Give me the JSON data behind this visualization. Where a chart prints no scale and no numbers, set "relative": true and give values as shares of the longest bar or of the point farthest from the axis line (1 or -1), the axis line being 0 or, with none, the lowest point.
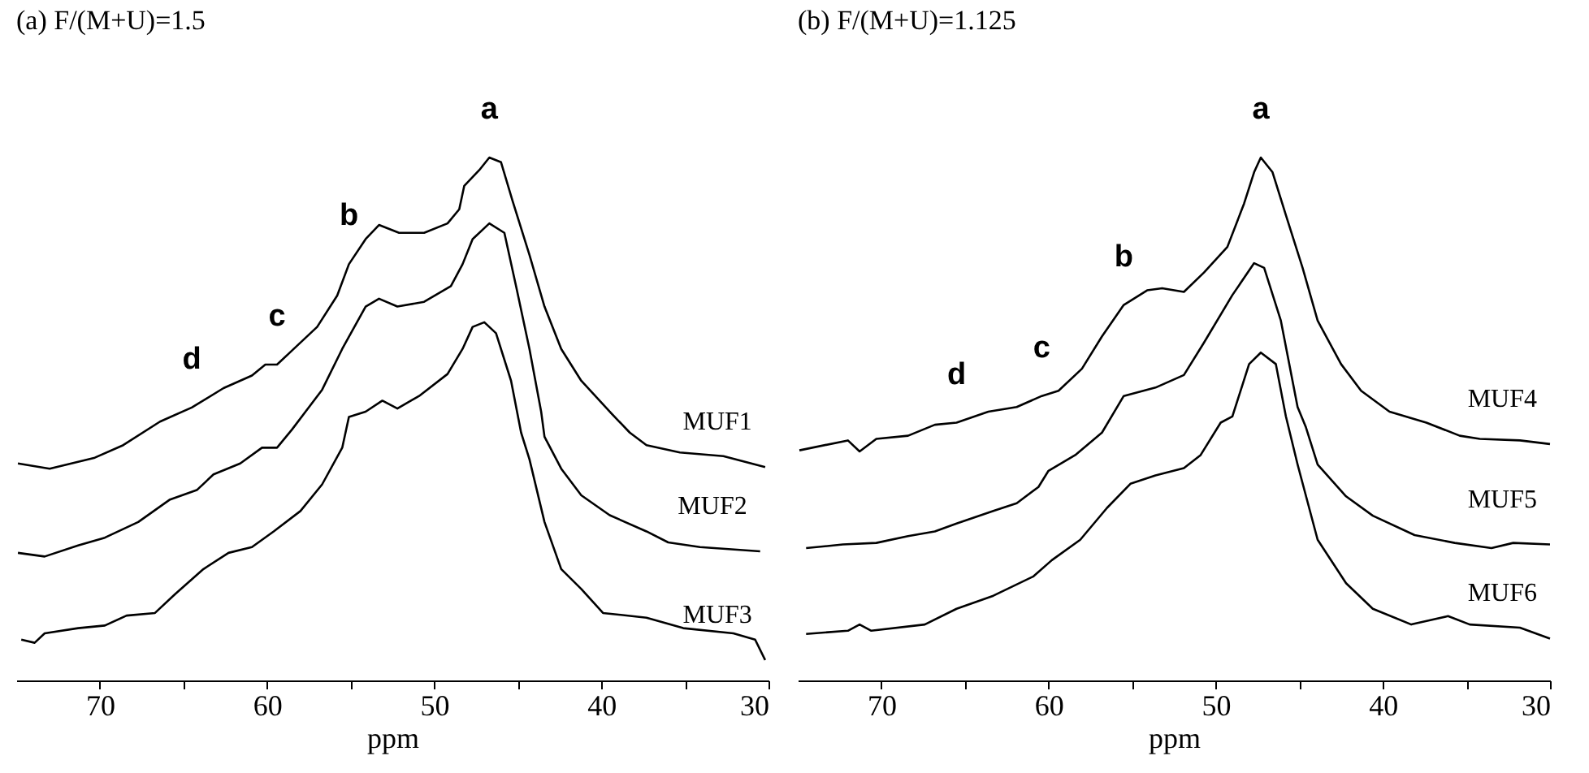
{
  "chart_data": [
    {
      "type": "line",
      "title": "(a) F/(M+U)=1.5",
      "xlabel": "ppm",
      "relative": true,
      "xlim": [
        75,
        30
      ],
      "xticks": [
        70,
        {
          "value": 65,
          "label": null
        },
        60,
        {
          "value": 55,
          "label": null
        },
        50,
        {
          "value": 45,
          "label": null
        },
        40,
        {
          "value": 35,
          "label": null
        },
        30
      ],
      "annotations": [
        {
          "text": "a",
          "x": 46.7,
          "y": 1.0
        },
        {
          "text": "b",
          "x": 55.1,
          "y": 0.796
        },
        {
          "text": "c",
          "x": 59.4,
          "y": 0.604
        },
        {
          "text": "d",
          "x": 64.5,
          "y": 0.522
        }
      ],
      "series": [
        {
          "name": "MUF1",
          "color": "#000000",
          "x": [
            74.9,
            73.0,
            70.3,
            68.6,
            66.4,
            64.5,
            62.6,
            60.9,
            60.1,
            59.4,
            58.5,
            57.0,
            55.8,
            55.1,
            54.1,
            53.3,
            52.1,
            50.6,
            49.2,
            48.5,
            48.2,
            47.3,
            46.7,
            46.0,
            45.3,
            44.3,
            43.4,
            42.4,
            41.2,
            39.5,
            38.3,
            37.3,
            35.3,
            32.7,
            30.2
          ],
          "values": [
            0.415,
            0.405,
            0.426,
            0.45,
            0.495,
            0.522,
            0.559,
            0.583,
            0.604,
            0.604,
            0.631,
            0.676,
            0.736,
            0.796,
            0.844,
            0.871,
            0.856,
            0.856,
            0.874,
            0.901,
            0.946,
            0.976,
            1.0,
            0.991,
            0.916,
            0.814,
            0.715,
            0.634,
            0.573,
            0.514,
            0.474,
            0.45,
            0.436,
            0.429,
            0.408
          ]
        },
        {
          "name": "MUF2",
          "color": "#000000",
          "x": [
            74.9,
            73.3,
            71.3,
            69.7,
            67.7,
            65.8,
            64.2,
            63.2,
            61.6,
            60.3,
            59.4,
            58.5,
            56.7,
            55.5,
            54.1,
            53.3,
            52.2,
            50.6,
            49.0,
            48.3,
            47.7,
            46.7,
            45.8,
            45.1,
            44.3,
            43.6,
            43.4,
            42.4,
            41.2,
            39.5,
            37.3,
            36.0,
            34.1,
            30.5
          ],
          "values": [
            0.244,
            0.237,
            0.258,
            0.273,
            0.303,
            0.346,
            0.364,
            0.394,
            0.415,
            0.445,
            0.445,
            0.48,
            0.556,
            0.634,
            0.715,
            0.73,
            0.715,
            0.724,
            0.754,
            0.796,
            0.844,
            0.874,
            0.856,
            0.754,
            0.634,
            0.514,
            0.466,
            0.405,
            0.354,
            0.316,
            0.285,
            0.264,
            0.255,
            0.247
          ]
        },
        {
          "name": "MUF3",
          "color": "#000000",
          "x": [
            74.7,
            73.9,
            73.3,
            71.3,
            69.7,
            68.4,
            66.7,
            65.5,
            63.8,
            62.3,
            60.9,
            59.6,
            58.0,
            56.7,
            55.5,
            55.1,
            54.1,
            53.1,
            52.2,
            50.9,
            49.2,
            48.3,
            47.7,
            47.0,
            46.3,
            45.4,
            44.8,
            44.3,
            43.4,
            42.4,
            41.2,
            39.9,
            37.3,
            35.1,
            32.1,
            30.8,
            30.2
          ],
          "values": [
            0.078,
            0.072,
            0.09,
            0.1,
            0.105,
            0.124,
            0.129,
            0.165,
            0.213,
            0.244,
            0.255,
            0.285,
            0.324,
            0.375,
            0.445,
            0.504,
            0.514,
            0.535,
            0.52,
            0.544,
            0.586,
            0.634,
            0.676,
            0.685,
            0.664,
            0.573,
            0.474,
            0.423,
            0.303,
            0.213,
            0.175,
            0.129,
            0.12,
            0.1,
            0.09,
            0.078,
            0.039
          ]
        }
      ]
    },
    {
      "type": "line",
      "title": "(b) F/(M+U)=1.125",
      "xlabel": "ppm",
      "relative": true,
      "xlim": [
        75,
        30
      ],
      "xticks": [
        70,
        {
          "value": 65,
          "label": null
        },
        60,
        {
          "value": 55,
          "label": null
        },
        50,
        {
          "value": 45,
          "label": null
        },
        40,
        {
          "value": 35,
          "label": null
        },
        30
      ],
      "annotations": [
        {
          "text": "a",
          "x": 47.3,
          "y": 1.0
        },
        {
          "text": "b",
          "x": 55.5,
          "y": 0.718
        },
        {
          "text": "c",
          "x": 60.4,
          "y": 0.544
        },
        {
          "text": "d",
          "x": 65.5,
          "y": 0.493
        }
      ],
      "series": [
        {
          "name": "MUF4",
          "color": "#000000",
          "x": [
            74.9,
            72.0,
            71.3,
            70.3,
            68.4,
            66.8,
            65.5,
            63.6,
            61.9,
            60.4,
            59.4,
            58.0,
            56.8,
            55.5,
            54.1,
            53.2,
            51.9,
            50.7,
            49.3,
            48.3,
            47.7,
            47.3,
            46.6,
            45.8,
            44.8,
            43.9,
            42.5,
            41.3,
            39.6,
            37.4,
            35.4,
            34.2,
            31.8,
            30.0
          ],
          "values": [
            0.44,
            0.459,
            0.438,
            0.462,
            0.468,
            0.489,
            0.493,
            0.514,
            0.523,
            0.544,
            0.554,
            0.596,
            0.658,
            0.718,
            0.746,
            0.75,
            0.743,
            0.78,
            0.829,
            0.912,
            0.972,
            1.0,
            0.972,
            0.89,
            0.789,
            0.688,
            0.605,
            0.554,
            0.514,
            0.493,
            0.468,
            0.462,
            0.459,
            0.452
          ]
        },
        {
          "name": "MUF5",
          "color": "#000000",
          "x": [
            74.5,
            72.3,
            70.3,
            68.4,
            66.8,
            65.5,
            63.3,
            61.9,
            60.6,
            60.0,
            58.4,
            56.8,
            55.5,
            53.6,
            51.9,
            50.7,
            49.0,
            47.7,
            47.1,
            46.1,
            45.1,
            44.6,
            43.9,
            42.2,
            40.6,
            38.1,
            35.7,
            33.5,
            32.2,
            30.0
          ],
          "values": [
            0.253,
            0.26,
            0.263,
            0.276,
            0.285,
            0.3,
            0.324,
            0.339,
            0.37,
            0.401,
            0.431,
            0.474,
            0.544,
            0.56,
            0.584,
            0.646,
            0.737,
            0.798,
            0.789,
            0.688,
            0.523,
            0.484,
            0.413,
            0.352,
            0.315,
            0.278,
            0.263,
            0.253,
            0.263,
            0.26
          ]
        },
        {
          "name": "MUF6",
          "color": "#000000",
          "x": [
            74.5,
            72.0,
            71.3,
            70.6,
            67.4,
            65.5,
            63.3,
            60.9,
            59.8,
            58.1,
            56.5,
            55.1,
            53.6,
            51.9,
            50.9,
            49.7,
            49.0,
            48.0,
            47.3,
            46.4,
            45.8,
            45.1,
            43.9,
            42.2,
            40.6,
            38.3,
            36.1,
            34.8,
            31.8,
            30.0
          ],
          "values": [
            0.089,
            0.095,
            0.107,
            0.095,
            0.107,
            0.137,
            0.162,
            0.199,
            0.23,
            0.269,
            0.33,
            0.376,
            0.392,
            0.406,
            0.431,
            0.493,
            0.505,
            0.605,
            0.627,
            0.605,
            0.505,
            0.413,
            0.269,
            0.186,
            0.137,
            0.107,
            0.123,
            0.107,
            0.101,
            0.08
          ]
        }
      ]
    }
  ]
}
